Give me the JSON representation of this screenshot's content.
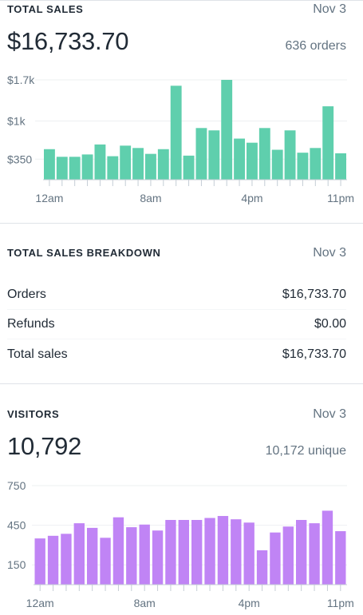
{
  "colors": {
    "sales_bar": "#5fcfad",
    "visitors_bar": "#c084f5",
    "axis_text": "#637381",
    "grid": "#eef0f2"
  },
  "total_sales": {
    "title": "TOTAL SALES",
    "date": "Nov 3",
    "amount": "$16,733.70",
    "orders": "636 orders"
  },
  "breakdown": {
    "title": "TOTAL SALES BREAKDOWN",
    "date": "Nov 3",
    "rows": [
      {
        "label": "Orders",
        "value": "$16,733.70"
      },
      {
        "label": "Refunds",
        "value": "$0.00"
      },
      {
        "label": "Total sales",
        "value": "$16,733.70"
      }
    ]
  },
  "visitors": {
    "title": "VISITORS",
    "date": "Nov 3",
    "count": "10,792",
    "unique": "10,172 unique"
  },
  "chart_data": [
    {
      "type": "bar",
      "y_ticks": [
        {
          "value": 1700,
          "label": "$1.7k"
        },
        {
          "value": 1000,
          "label": "$1k"
        },
        {
          "value": 350,
          "label": "$350"
        }
      ],
      "x_tick_labels": [
        {
          "index": 0,
          "label": "12am"
        },
        {
          "index": 8,
          "label": "8am"
        },
        {
          "index": 16,
          "label": "4pm"
        },
        {
          "index": 23,
          "label": "11pm"
        }
      ],
      "ylim": [
        0,
        1700
      ],
      "values": [
        520,
        390,
        390,
        430,
        600,
        400,
        580,
        540,
        440,
        520,
        1600,
        410,
        880,
        840,
        1700,
        700,
        630,
        880,
        510,
        840,
        460,
        540,
        1250,
        450
      ]
    },
    {
      "type": "bar",
      "y_ticks": [
        {
          "value": 750,
          "label": "750"
        },
        {
          "value": 450,
          "label": "450"
        },
        {
          "value": 150,
          "label": "150"
        }
      ],
      "x_tick_labels": [
        {
          "index": 0,
          "label": "12am"
        },
        {
          "index": 8,
          "label": "8am"
        },
        {
          "index": 16,
          "label": "4pm"
        },
        {
          "index": 23,
          "label": "11pm"
        }
      ],
      "ylim": [
        0,
        750
      ],
      "values": [
        350,
        370,
        385,
        465,
        430,
        355,
        510,
        435,
        455,
        410,
        490,
        490,
        490,
        505,
        520,
        495,
        470,
        260,
        395,
        440,
        490,
        465,
        560,
        405
      ]
    }
  ]
}
